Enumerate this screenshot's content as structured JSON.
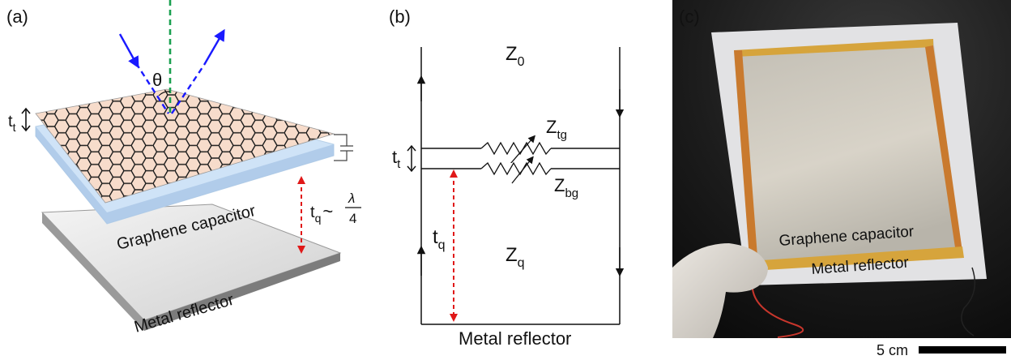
{
  "panel_a": {
    "tag": "(a)",
    "theta": "θ",
    "tt_main": "t",
    "tt_sub": "t",
    "tq_main": "t",
    "tq_sub": "q",
    "tq_approx": "~",
    "lambda": "λ",
    "four": "4",
    "graphene_label": "Graphene capacitor",
    "metal_label": "Metal reflector",
    "colors": {
      "incident": "#1a1aff",
      "normal": "#1aa050",
      "distance": "#e01818",
      "graphene_fill": "#f7dccb",
      "hex_stroke": "#1b1b1b",
      "dielectric": "#cfe3f7",
      "reflector": "#bdbdbd"
    }
  },
  "panel_b": {
    "tag": "(b)",
    "z0_main": "Z",
    "z0_sub": "0",
    "ztg_main": "Z",
    "ztg_sub": "tg",
    "zbg_main": "Z",
    "zbg_sub": "bg",
    "zq_main": "Z",
    "zq_sub": "q",
    "tt_main": "t",
    "tt_sub": "t",
    "tq_main": "t",
    "tq_sub": "q",
    "metal_label": "Metal reflector"
  },
  "panel_c": {
    "tag": "(c)",
    "graphene_label": "Graphene capacitor",
    "metal_label": "Metal reflector",
    "scale_label": "5 cm"
  }
}
